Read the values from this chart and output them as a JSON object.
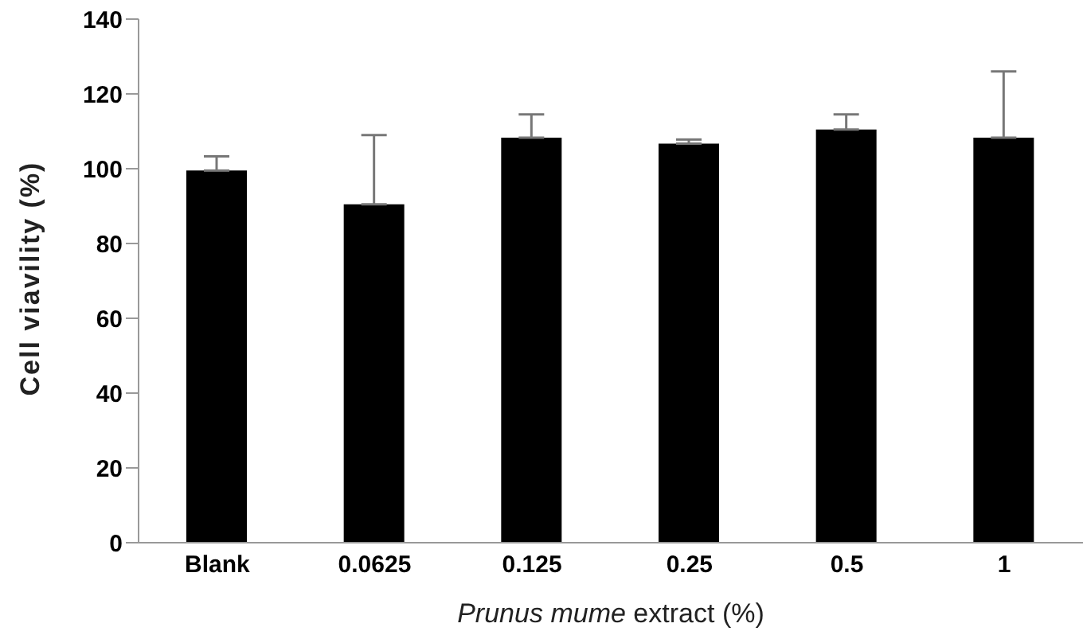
{
  "chart_data": {
    "type": "bar",
    "xlabel": "Prunus mume extract (%)",
    "ylabel": "Cell viavility (%)",
    "categories": [
      "Blank",
      "0.0625",
      "0.125",
      "0.25",
      "0.5",
      "1"
    ],
    "values": [
      99.5,
      90.5,
      108.3,
      106.7,
      110.5,
      108.3
    ],
    "errors": [
      [
        99.5,
        103.3
      ],
      [
        90.5,
        109
      ],
      [
        108.3,
        114.5
      ],
      [
        106.7,
        107.8
      ],
      [
        110.5,
        114.5
      ],
      [
        108.3,
        126
      ]
    ],
    "color": "#000000",
    "ylim": [
      0,
      140
    ],
    "yticks": [
      0,
      20,
      40,
      60,
      80,
      100,
      120,
      140
    ],
    "grid": false,
    "legend": false
  }
}
